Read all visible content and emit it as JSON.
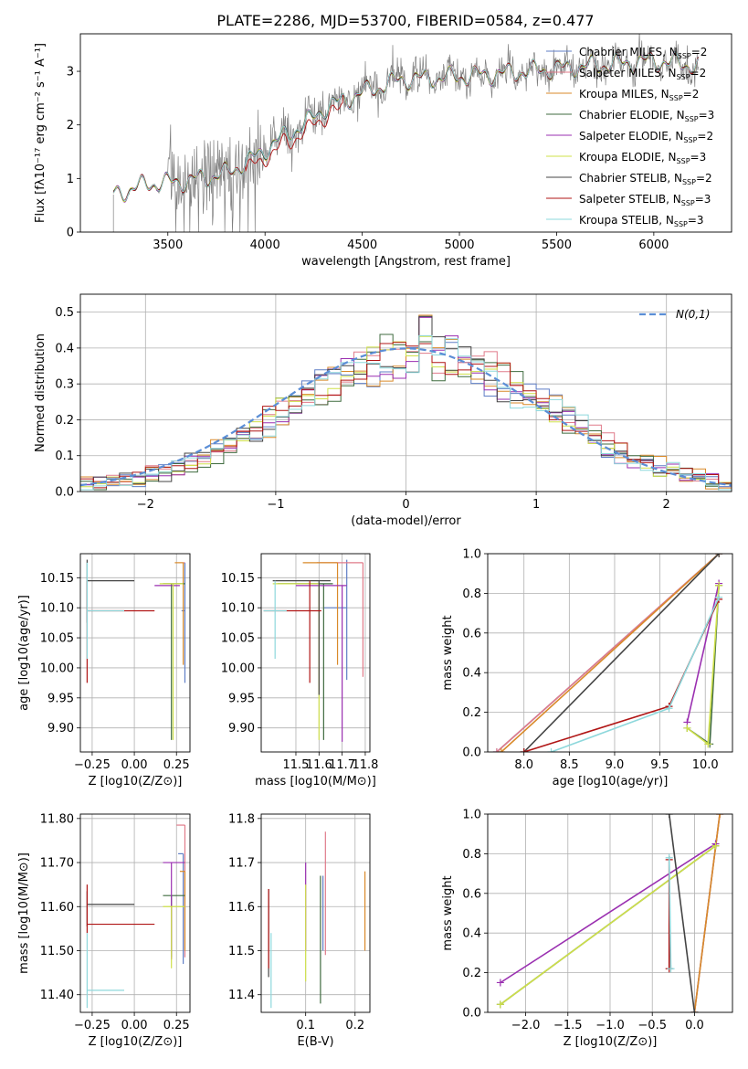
{
  "figure": {
    "title": "PLATE=2286, MJD=53700, FIBERID=0584, z=0.477"
  },
  "chart_data": [
    {
      "id": "spectrum",
      "type": "line",
      "xlabel": "wavelength [Angstrom, rest frame]",
      "ylabel": "Flux [fλ10⁻¹⁷ erg cm⁻² s⁻¹ A⁻¹]",
      "xlim": [
        3050,
        6400
      ],
      "ylim": [
        0,
        3.7
      ],
      "xticks": [
        3500,
        4000,
        4500,
        5000,
        5500,
        6000
      ],
      "yticks": [
        0,
        1,
        2,
        3
      ],
      "grid": false,
      "legend_position": "top-right",
      "observed": {
        "color": "#808080",
        "x_range": [
          3220,
          6230
        ],
        "noise_level": "high in blue end, moderate in red",
        "approx_continuum": [
          [
            3220,
            0.7
          ],
          [
            3400,
            0.9
          ],
          [
            3600,
            0.95
          ],
          [
            3800,
            1.1
          ],
          [
            3950,
            1.4
          ],
          [
            4100,
            1.8
          ],
          [
            4200,
            2.0
          ],
          [
            4300,
            2.3
          ],
          [
            4500,
            2.6
          ],
          [
            4700,
            2.85
          ],
          [
            5000,
            2.9
          ],
          [
            5200,
            2.95
          ],
          [
            5500,
            3.05
          ],
          [
            6000,
            3.2
          ],
          [
            6230,
            3.1
          ]
        ]
      },
      "series": [
        {
          "name": "Chabrier MILES, N_SSP=2",
          "label_main": "Chabrier MILES, N",
          "label_sub": "SSP",
          "label_tail": "=2",
          "color": "#5f7ec6"
        },
        {
          "name": "Salpeter MILES, N_SSP=2",
          "label_main": "Salpeter MILES, N",
          "label_sub": "SSP",
          "label_tail": "=2",
          "color": "#e07b8a"
        },
        {
          "name": "Kroupa MILES, N_SSP=2",
          "label_main": "Kroupa MILES, N",
          "label_sub": "SSP",
          "label_tail": "=2",
          "color": "#d98a2a"
        },
        {
          "name": "Chabrier ELODIE, N_SSP=3",
          "label_main": "Chabrier ELODIE, N",
          "label_sub": "SSP",
          "label_tail": "=3",
          "color": "#3f6b3f"
        },
        {
          "name": "Salpeter ELODIE, N_SSP=2",
          "label_main": "Salpeter ELODIE, N",
          "label_sub": "SSP",
          "label_tail": "=2",
          "color": "#9a2fb0"
        },
        {
          "name": "Kroupa ELODIE, N_SSP=3",
          "label_main": "Kroupa ELODIE, N",
          "label_sub": "SSP",
          "label_tail": "=3",
          "color": "#cfe04a"
        },
        {
          "name": "Chabrier STELIB, N_SSP=2",
          "label_main": "Chabrier STELIB, N",
          "label_sub": "SSP",
          "label_tail": "=2",
          "color": "#444444"
        },
        {
          "name": "Salpeter STELIB, N_SSP=3",
          "label_main": "Salpeter STELIB, N",
          "label_sub": "SSP",
          "label_tail": "=3",
          "color": "#b01515"
        },
        {
          "name": "Kroupa STELIB, N_SSP=3",
          "label_main": "Kroupa STELIB, N",
          "label_sub": "SSP",
          "label_tail": "=3",
          "color": "#8ed8dc"
        }
      ]
    },
    {
      "id": "residual_hist",
      "type": "histogram",
      "xlabel": "(data-model)/error",
      "ylabel": "Normed distribution",
      "xlim": [
        -2.5,
        2.5
      ],
      "ylim": [
        0,
        0.55
      ],
      "xticks": [
        -2,
        -1,
        0,
        1,
        2
      ],
      "yticks": [
        0.0,
        0.1,
        0.2,
        0.3,
        0.4,
        0.5
      ],
      "grid": true,
      "legend_position": "top-right",
      "reference_label": "N(0,1)",
      "reference_color": "#5b8ed6",
      "bin_width": 0.1,
      "approx_peaks": {
        "Chabrier STELIB": 0.52,
        "Kroupa MILES": 0.51,
        "Kroupa STELIB": 0.49
      }
    },
    {
      "id": "age_vs_Z",
      "type": "errorbar",
      "xlabel": "Z [log10(Z/Z⊙)]",
      "ylabel": "age  [log10(age/yr)]",
      "xlim": [
        -0.32,
        0.33
      ],
      "ylim": [
        9.86,
        10.19
      ],
      "xticks": [
        -0.25,
        0.0,
        0.25
      ],
      "yticks": [
        9.9,
        9.95,
        10.0,
        10.05,
        10.1,
        10.15
      ],
      "grid": true,
      "points": [
        {
          "series": "Chabrier MILES",
          "x": 0.3,
          "y": 10.095,
          "xerr": [
            0.02,
            0.0
          ],
          "yerr": [
            0.12,
            0.08
          ]
        },
        {
          "series": "Salpeter MILES",
          "x": 0.3,
          "y": 10.175,
          "xerr": [
            0.01,
            0.0
          ],
          "yerr": [
            0.0,
            0.0
          ]
        },
        {
          "series": "Kroupa MILES",
          "x": 0.29,
          "y": 10.175,
          "xerr": [
            0.05,
            0.0
          ],
          "yerr": [
            0.17,
            0.0
          ]
        },
        {
          "series": "Chabrier ELODIE",
          "x": 0.22,
          "y": 10.14,
          "xerr": [
            0.05,
            0.08
          ],
          "yerr": [
            0.26,
            0.0
          ]
        },
        {
          "series": "Salpeter ELODIE",
          "x": 0.22,
          "y": 10.137,
          "xerr": [
            0.1,
            0.05
          ],
          "yerr": [
            0.0,
            0.0
          ]
        },
        {
          "series": "Kroupa ELODIE",
          "x": 0.23,
          "y": 10.14,
          "xerr": [
            0.08,
            0.06
          ],
          "yerr": [
            0.26,
            0.0
          ]
        },
        {
          "series": "Chabrier STELIB",
          "x": -0.28,
          "y": 10.145,
          "xerr": [
            0.0,
            0.28
          ],
          "yerr": [
            0.07,
            0.035
          ]
        },
        {
          "series": "Salpeter STELIB",
          "x": -0.28,
          "y": 10.095,
          "xerr": [
            0.0,
            0.4
          ],
          "yerr": [
            0.12,
            0.05
          ]
        },
        {
          "series": "Kroupa STELIB",
          "x": -0.28,
          "y": 10.095,
          "xerr": [
            0.0,
            0.22
          ],
          "yerr": [
            0.08,
            0.08
          ]
        }
      ]
    },
    {
      "id": "age_vs_mass",
      "type": "errorbar",
      "xlabel": "mass [log10(M/M⊙)]",
      "ylabel": "",
      "xlim": [
        11.35,
        11.82
      ],
      "ylim": [
        9.86,
        10.19
      ],
      "xticks": [
        11.5,
        11.6,
        11.7,
        11.8
      ],
      "yticks": [
        9.9,
        9.95,
        10.0,
        10.05,
        10.1,
        10.15
      ],
      "grid": true,
      "points": [
        {
          "series": "Chabrier MILES",
          "x": 11.72,
          "y": 10.1,
          "xerr": [
            0.1,
            0.0
          ],
          "yerr": [
            0.12,
            0.08
          ]
        },
        {
          "series": "Salpeter MILES",
          "x": 11.79,
          "y": 10.175,
          "xerr": [
            0.2,
            0.0
          ],
          "yerr": [
            0.19,
            0.0
          ]
        },
        {
          "series": "Kroupa MILES",
          "x": 11.68,
          "y": 10.175,
          "xerr": [
            0.15,
            0.0
          ],
          "yerr": [
            0.17,
            0.0
          ]
        },
        {
          "series": "Chabrier ELODIE",
          "x": 11.62,
          "y": 10.14,
          "xerr": [
            0.2,
            0.04
          ],
          "yerr": [
            0.26,
            0.0
          ]
        },
        {
          "series": "Salpeter ELODIE",
          "x": 11.7,
          "y": 10.137,
          "xerr": [
            0.2,
            0.02
          ],
          "yerr": [
            0.26,
            0.0
          ]
        },
        {
          "series": "Kroupa ELODIE",
          "x": 11.6,
          "y": 10.14,
          "xerr": [
            0.2,
            0.0
          ],
          "yerr": [
            0.26,
            0.0
          ]
        },
        {
          "series": "Chabrier STELIB",
          "x": 11.6,
          "y": 10.145,
          "xerr": [
            0.2,
            0.05
          ],
          "yerr": [
            0.19,
            0.0
          ]
        },
        {
          "series": "Salpeter STELIB",
          "x": 11.56,
          "y": 10.095,
          "xerr": [
            0.2,
            0.05
          ],
          "yerr": [
            0.12,
            0.05
          ]
        },
        {
          "series": "Kroupa STELIB",
          "x": 11.41,
          "y": 10.095,
          "xerr": [
            0.05,
            0.05
          ],
          "yerr": [
            0.08,
            0.05
          ]
        }
      ]
    },
    {
      "id": "massweight_vs_age",
      "type": "line",
      "xlabel": "age  [log10(age/yr)]",
      "ylabel": "mass weight",
      "xlim": [
        7.6,
        10.3
      ],
      "ylim": [
        0,
        1.0
      ],
      "xticks": [
        8.0,
        8.5,
        9.0,
        9.5,
        10.0
      ],
      "yticks": [
        0.0,
        0.2,
        0.4,
        0.6,
        0.8,
        1.0
      ],
      "grid": true,
      "series": [
        {
          "name": "Chabrier MILES",
          "points": [
            [
              7.7,
              0.0
            ],
            [
              10.15,
              1.0
            ]
          ]
        },
        {
          "name": "Salpeter MILES",
          "points": [
            [
              7.7,
              0.0
            ],
            [
              10.15,
              1.0
            ]
          ]
        },
        {
          "name": "Kroupa MILES",
          "points": [
            [
              7.75,
              0.0
            ],
            [
              10.15,
              1.0
            ]
          ]
        },
        {
          "name": "Chabrier ELODIE",
          "points": [
            [
              9.8,
              0.12
            ],
            [
              10.05,
              0.04
            ],
            [
              10.15,
              0.84
            ]
          ]
        },
        {
          "name": "Salpeter ELODIE",
          "points": [
            [
              9.8,
              0.15
            ],
            [
              10.15,
              0.85
            ]
          ]
        },
        {
          "name": "Kroupa ELODIE",
          "points": [
            [
              9.8,
              0.12
            ],
            [
              10.03,
              0.04
            ],
            [
              10.15,
              0.84
            ]
          ]
        },
        {
          "name": "Chabrier STELIB",
          "points": [
            [
              8.0,
              0.0
            ],
            [
              10.15,
              1.0
            ]
          ]
        },
        {
          "name": "Salpeter STELIB",
          "points": [
            [
              8.0,
              0.0
            ],
            [
              9.6,
              0.23
            ],
            [
              10.15,
              0.77
            ]
          ]
        },
        {
          "name": "Kroupa STELIB",
          "points": [
            [
              8.3,
              0.0
            ],
            [
              9.6,
              0.22
            ],
            [
              10.15,
              0.78
            ]
          ]
        }
      ]
    },
    {
      "id": "mass_vs_Z",
      "type": "errorbar",
      "xlabel": "Z [log10(Z/Z⊙)]",
      "ylabel": "mass [log10(M/M⊙)]",
      "xlim": [
        -0.32,
        0.33
      ],
      "ylim": [
        11.36,
        11.81
      ],
      "xticks": [
        -0.25,
        0.0,
        0.25
      ],
      "yticks": [
        11.4,
        11.5,
        11.6,
        11.7,
        11.8
      ],
      "grid": true,
      "points": [
        {
          "series": "Chabrier MILES",
          "x": 0.29,
          "y": 11.72,
          "xerr": [
            0.03,
            0.0
          ],
          "yerr": [
            0.25,
            0.0
          ]
        },
        {
          "series": "Salpeter MILES",
          "x": 0.3,
          "y": 11.785,
          "xerr": [
            0.05,
            0.0
          ],
          "yerr": [
            0.3,
            0.0
          ]
        },
        {
          "series": "Kroupa MILES",
          "x": 0.3,
          "y": 11.68,
          "xerr": [
            0.03,
            0.0
          ],
          "yerr": [
            0.18,
            0.0
          ]
        },
        {
          "series": "Chabrier ELODIE",
          "x": 0.22,
          "y": 11.625,
          "xerr": [
            0.05,
            0.08
          ],
          "yerr": [
            0.14,
            0.0
          ]
        },
        {
          "series": "Salpeter ELODIE",
          "x": 0.22,
          "y": 11.7,
          "xerr": [
            0.05,
            0.08
          ],
          "yerr": [
            0.22,
            0.0
          ]
        },
        {
          "series": "Kroupa ELODIE",
          "x": 0.22,
          "y": 11.6,
          "xerr": [
            0.05,
            0.08
          ],
          "yerr": [
            0.14,
            0.0
          ]
        },
        {
          "series": "Chabrier STELIB",
          "x": -0.28,
          "y": 11.605,
          "xerr": [
            0.0,
            0.28
          ],
          "yerr": [
            0.05,
            0.03
          ]
        },
        {
          "series": "Salpeter STELIB",
          "x": -0.28,
          "y": 11.56,
          "xerr": [
            0.0,
            0.4
          ],
          "yerr": [
            0.02,
            0.09
          ]
        },
        {
          "series": "Kroupa STELIB",
          "x": -0.28,
          "y": 11.41,
          "xerr": [
            0.0,
            0.22
          ],
          "yerr": [
            0.04,
            0.13
          ]
        }
      ]
    },
    {
      "id": "mass_vs_ebv",
      "type": "errorbar",
      "xlabel": "E(B-V)",
      "ylabel": "",
      "xlim": [
        0.01,
        0.23
      ],
      "ylim": [
        11.36,
        11.81
      ],
      "xticks": [
        0.1,
        0.2
      ],
      "yticks": [
        11.4,
        11.5,
        11.6,
        11.7,
        11.8
      ],
      "grid": true,
      "points": [
        {
          "series": "Chabrier MILES",
          "x": 0.135,
          "y": 11.6,
          "xerr": [
            0.0,
            0.0
          ],
          "yerr": [
            0.1,
            0.07
          ]
        },
        {
          "series": "Salpeter MILES",
          "x": 0.14,
          "y": 11.64,
          "xerr": [
            0.0,
            0.0
          ],
          "yerr": [
            0.15,
            0.13
          ]
        },
        {
          "series": "Kroupa MILES",
          "x": 0.22,
          "y": 11.6,
          "xerr": [
            0.0,
            0.0
          ],
          "yerr": [
            0.1,
            0.08
          ]
        },
        {
          "series": "Chabrier ELODIE",
          "x": 0.13,
          "y": 11.56,
          "xerr": [
            0.0,
            0.0
          ],
          "yerr": [
            0.18,
            0.11
          ]
        },
        {
          "series": "Salpeter ELODIE",
          "x": 0.1,
          "y": 11.6,
          "xerr": [
            0.0,
            0.0
          ],
          "yerr": [
            0.1,
            0.1
          ]
        },
        {
          "series": "Kroupa ELODIE",
          "x": 0.1,
          "y": 11.55,
          "xerr": [
            0.0,
            0.0
          ],
          "yerr": [
            0.12,
            0.1
          ]
        },
        {
          "series": "Chabrier STELIB",
          "x": 0.025,
          "y": 11.56,
          "xerr": [
            0.0,
            0.0
          ],
          "yerr": [
            0.12,
            0.08
          ]
        },
        {
          "series": "Salpeter STELIB",
          "x": 0.025,
          "y": 11.56,
          "xerr": [
            0.0,
            0.0
          ],
          "yerr": [
            0.1,
            0.08
          ]
        },
        {
          "series": "Kroupa STELIB",
          "x": 0.03,
          "y": 11.45,
          "xerr": [
            0.0,
            0.0
          ],
          "yerr": [
            0.08,
            0.09
          ]
        }
      ]
    },
    {
      "id": "massweight_vs_Z",
      "type": "line",
      "xlabel": "Z [log10(Z/Z⊙)]",
      "ylabel": "mass weight",
      "xlim": [
        -2.45,
        0.45
      ],
      "ylim": [
        0,
        1.0
      ],
      "xticks": [
        -2.0,
        -1.5,
        -1.0,
        -0.5,
        0.0
      ],
      "yticks": [
        0.0,
        0.2,
        0.4,
        0.6,
        0.8,
        1.0
      ],
      "grid": true,
      "series": [
        {
          "name": "Chabrier MILES",
          "points": [
            [
              0.0,
              0.0
            ],
            [
              0.3,
              1.0
            ]
          ]
        },
        {
          "name": "Salpeter MILES",
          "points": [
            [
              0.0,
              0.0
            ],
            [
              0.3,
              1.0
            ]
          ]
        },
        {
          "name": "Kroupa MILES",
          "points": [
            [
              0.0,
              0.0
            ],
            [
              0.3,
              1.0
            ]
          ]
        },
        {
          "name": "Chabrier ELODIE",
          "points": [
            [
              -2.3,
              0.04
            ],
            [
              0.25,
              0.84
            ]
          ]
        },
        {
          "name": "Salpeter ELODIE",
          "points": [
            [
              -2.3,
              0.15
            ],
            [
              0.25,
              0.85
            ]
          ]
        },
        {
          "name": "Kroupa ELODIE",
          "points": [
            [
              -2.3,
              0.04
            ],
            [
              0.25,
              0.84
            ]
          ]
        },
        {
          "name": "Chabrier STELIB",
          "points": [
            [
              -0.3,
              1.0
            ],
            [
              0.0,
              0.0
            ]
          ]
        },
        {
          "name": "Salpeter STELIB",
          "points": [
            [
              -0.3,
              0.77
            ],
            [
              -0.3,
              0.22
            ]
          ]
        },
        {
          "name": "Kroupa STELIB",
          "points": [
            [
              -0.3,
              0.78
            ],
            [
              -0.28,
              0.22
            ]
          ]
        }
      ]
    }
  ]
}
